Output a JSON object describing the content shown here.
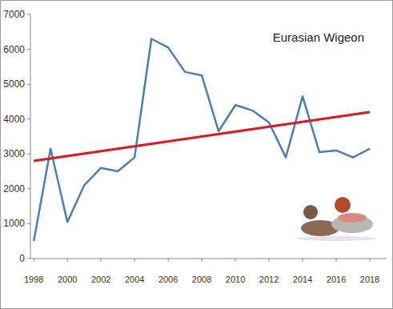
{
  "chart_data": {
    "type": "line",
    "title": "Eurasian Wigeon",
    "x": [
      1998,
      1999,
      2000,
      2001,
      2002,
      2003,
      2004,
      2005,
      2006,
      2007,
      2008,
      2009,
      2010,
      2011,
      2012,
      2013,
      2014,
      2015,
      2016,
      2017,
      2018
    ],
    "series": [
      {
        "color": "#4a7ebb",
        "values": [
          500,
          3150,
          1050,
          2100,
          2600,
          2500,
          2900,
          6300,
          6050,
          5350,
          5250,
          3650,
          4400,
          4250,
          3900,
          2900,
          4650,
          3050,
          3100,
          2900,
          3150
        ]
      },
      {
        "color": "#e8141b",
        "x": [
          1998,
          2018
        ],
        "values": [
          2800,
          4200
        ]
      }
    ],
    "xlim": [
      1997.8,
      2019
    ],
    "xticks": [
      1998,
      2000,
      2002,
      2004,
      2006,
      2008,
      2010,
      2012,
      2014,
      2016,
      2018
    ],
    "ylim": [
      0,
      7000
    ],
    "yticks": [
      0,
      1000,
      2000,
      3000,
      4000,
      5000,
      6000,
      7000
    ],
    "grid": false
  }
}
